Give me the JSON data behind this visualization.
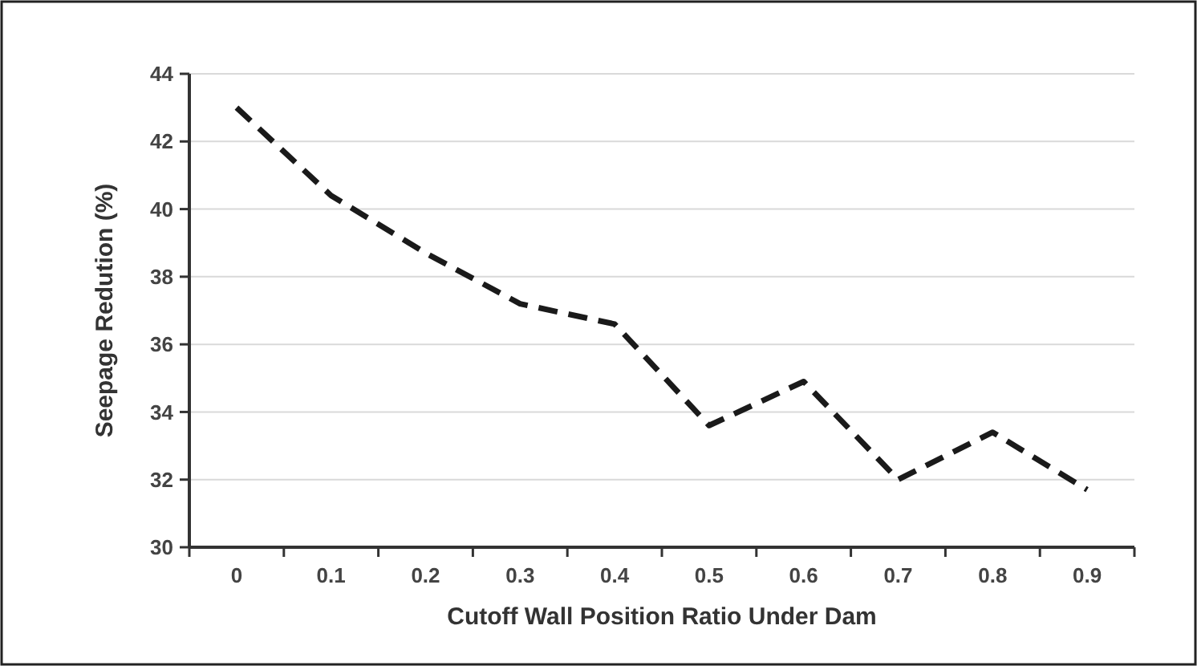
{
  "chart_data": {
    "type": "line",
    "xlabel": "Cutoff Wall Position Ratio Under Dam",
    "ylabel": "Seepage Redution (%)",
    "categories": [
      "0",
      "0.1",
      "0.2",
      "0.3",
      "0.4",
      "0.5",
      "0.6",
      "0.7",
      "0.8",
      "0.9"
    ],
    "series": [
      {
        "color": "#1a1a1a",
        "values": [
          43.0,
          40.4,
          38.7,
          37.2,
          36.6,
          33.6,
          34.9,
          32.0,
          33.4,
          31.7
        ]
      }
    ],
    "ylim": [
      30,
      44
    ],
    "yticks": [
      30,
      32,
      34,
      36,
      38,
      40,
      42,
      44
    ],
    "grid": "y",
    "line_style": "dashed",
    "marker": "none"
  }
}
